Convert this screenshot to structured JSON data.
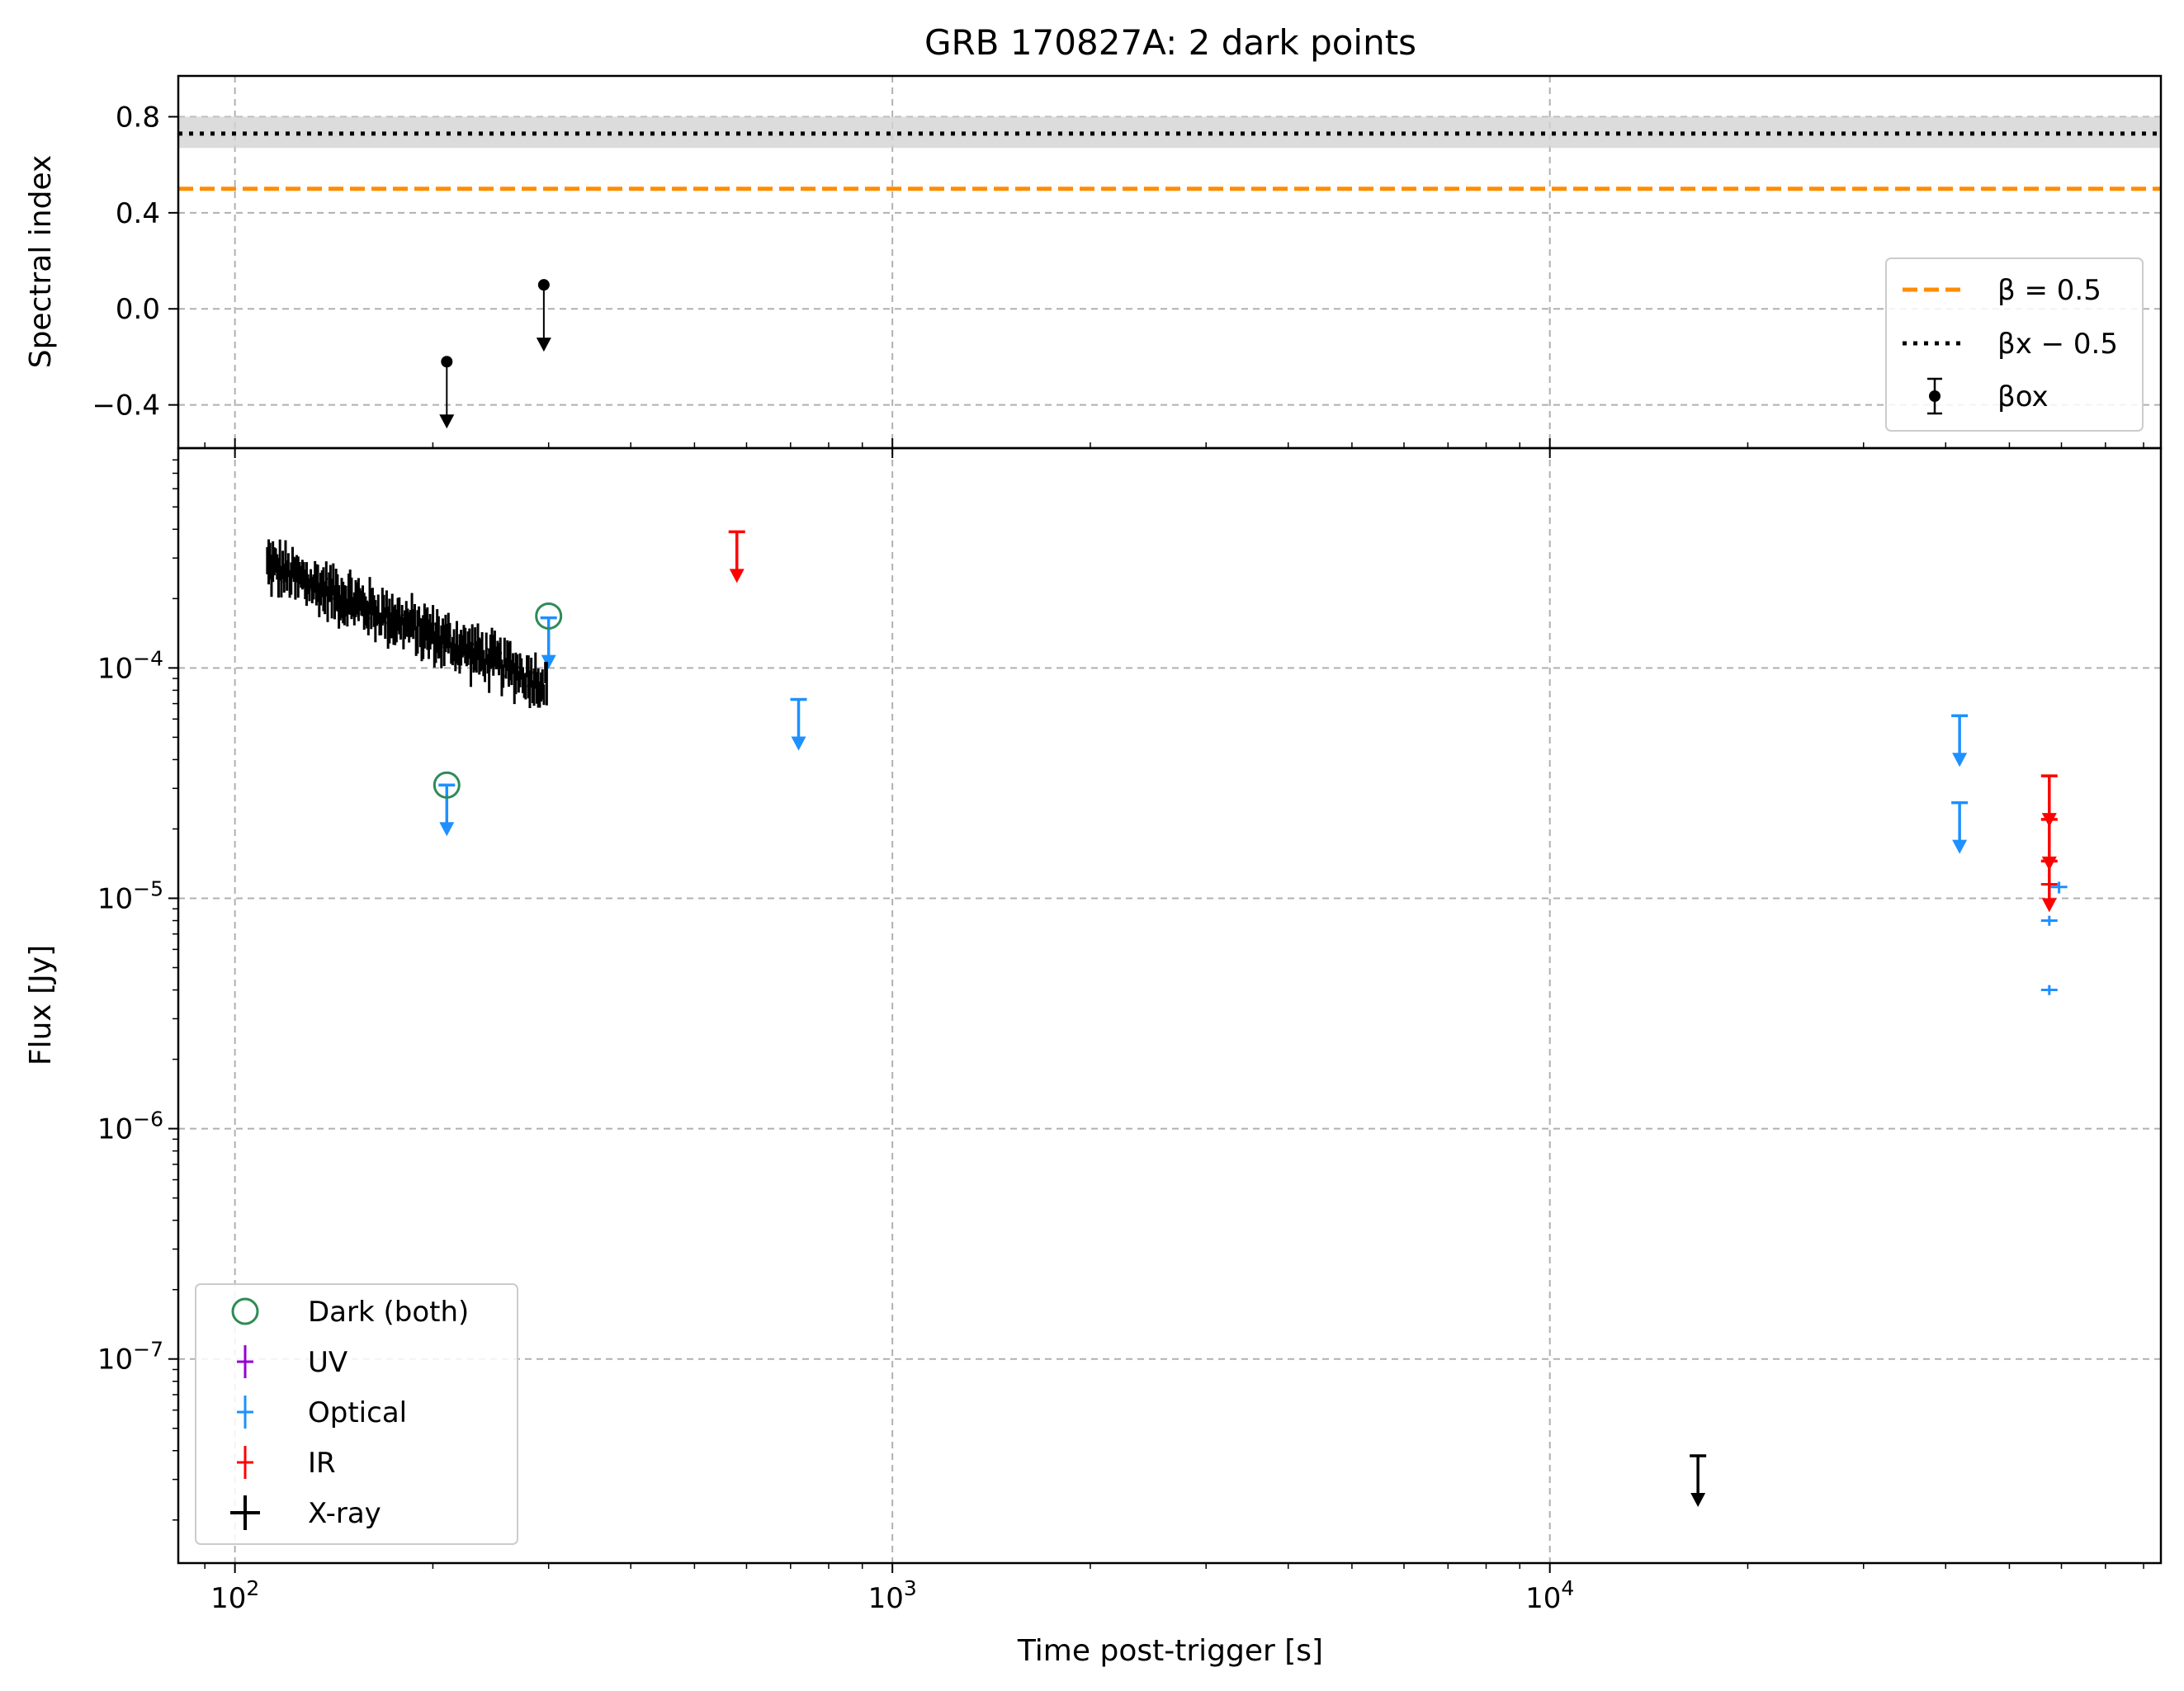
{
  "figure": {
    "title": "GRB 170827A: 2 dark points"
  },
  "colors": {
    "optical": "#1e90ff",
    "ir": "#ff0000",
    "uv": "#9400d3",
    "xray": "#000000",
    "dark": "#2e8b57",
    "beta_half": "#ff8c00",
    "grid": "#b0b0b0",
    "band": "#d3d3d3"
  },
  "chart_data": [
    {
      "type": "scatter",
      "panel": "spectral-index",
      "ylabel": "Spectral index",
      "xscale": "log",
      "xlim": [
        82,
        85000
      ],
      "ylim": [
        -0.58,
        0.97
      ],
      "yticks": [
        -0.4,
        0.0,
        0.4,
        0.8
      ],
      "ytick_labels": [
        "−0.4",
        "0.0",
        "0.4",
        "0.8"
      ],
      "grid": true,
      "reference_lines": [
        {
          "name": "β = 0.5",
          "y": 0.5,
          "style": "dashed",
          "color": "#ff8c00"
        },
        {
          "name": "βx − 0.5",
          "y": 0.73,
          "band": [
            0.67,
            0.8
          ],
          "style": "dotted",
          "color": "#000000"
        }
      ],
      "series": [
        {
          "name": "βox",
          "style": "upper-limit",
          "points": [
            {
              "x": 210,
              "y": -0.22
            },
            {
              "x": 295,
              "y": 0.1
            }
          ]
        }
      ],
      "legend": {
        "position": "lower-right",
        "entries": [
          {
            "label": "β = 0.5"
          },
          {
            "label": "βx − 0.5"
          },
          {
            "label": "βox"
          }
        ]
      }
    },
    {
      "type": "scatter",
      "panel": "flux",
      "title": "",
      "xlabel": "Time post-trigger [s]",
      "ylabel": "Flux [Jy]",
      "xscale": "log",
      "yscale": "log",
      "xlim": [
        82,
        85000
      ],
      "ylim": [
        1.3e-08,
        0.0009
      ],
      "xticks": [
        100,
        1000,
        10000
      ],
      "xtick_labels": [
        {
          "base": "10",
          "exp": "2"
        },
        {
          "base": "10",
          "exp": "3"
        },
        {
          "base": "10",
          "exp": "4"
        }
      ],
      "yticks": [
        1e-07,
        1e-06,
        1e-05,
        0.0001
      ],
      "ytick_labels": [
        {
          "base": "10",
          "exp": "−7"
        },
        {
          "base": "10",
          "exp": "−6"
        },
        {
          "base": "10",
          "exp": "−5"
        },
        {
          "base": "10",
          "exp": "−4"
        }
      ],
      "grid": true,
      "series": [
        {
          "name": "Optical",
          "color": "#1e90ff",
          "upper_limits": [
            {
              "x": 210,
              "y": 3.1e-05
            },
            {
              "x": 300,
              "y": 0.000165
            },
            {
              "x": 720,
              "y": 7.3e-05
            },
            {
              "x": 42000,
              "y": 6.2e-05
            },
            {
              "x": 42000,
              "y": 2.6e-05
            }
          ],
          "detections": [
            {
              "x": 57500,
              "y": 8e-06,
              "ylo": 7.6e-06,
              "yhi": 8.4e-06
            },
            {
              "x": 57500,
              "y": 4e-06,
              "ylo": 3.8e-06,
              "yhi": 4.2e-06
            },
            {
              "x": 59500,
              "y": 1.12e-05,
              "ylo": 1.05e-05,
              "yhi": 1.18e-05
            }
          ]
        },
        {
          "name": "IR",
          "color": "#ff0000",
          "upper_limits": [
            {
              "x": 580,
              "y": 0.00039
            },
            {
              "x": 57500,
              "y": 3.4e-05
            },
            {
              "x": 57500,
              "y": 2.2e-05
            },
            {
              "x": 57500,
              "y": 1.45e-05
            }
          ],
          "detections": [
            {
              "x": 57500,
              "y": 1.15e-05,
              "ylo": 9.5e-06,
              "yhi": 1.35e-05
            }
          ]
        },
        {
          "name": "UV",
          "color": "#9400d3",
          "upper_limits": [],
          "detections": []
        },
        {
          "name": "X-ray",
          "color": "#000000",
          "light_curve": {
            "t_start": 112,
            "t_end": 298,
            "n_points": 200,
            "flux_start": 0.00028,
            "flux_end": 8.5e-05,
            "scatter_dex": 0.06,
            "err_dex": 0.07
          },
          "upper_limits": [
            {
              "x": 16800,
              "y": 3.8e-08
            }
          ]
        },
        {
          "name": "Dark (both)",
          "color": "#2e8b57",
          "marker": "open-circle",
          "points": [
            {
              "x": 210,
              "y": 3.1e-05
            },
            {
              "x": 300,
              "y": 0.000168
            }
          ]
        }
      ],
      "legend": {
        "position": "lower-left",
        "entries": [
          {
            "label": "Dark (both)"
          },
          {
            "label": "UV"
          },
          {
            "label": "Optical"
          },
          {
            "label": "IR"
          },
          {
            "label": "X-ray"
          }
        ]
      }
    }
  ]
}
